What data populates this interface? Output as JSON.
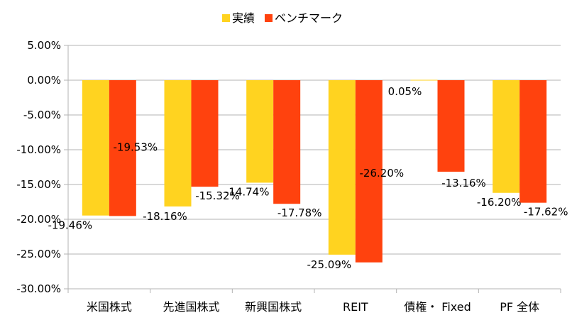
{
  "chart_data": {
    "type": "bar",
    "categories": [
      "米国株式",
      "先進国株式",
      "新興国株式",
      "REIT",
      "債権・ Fixed",
      "PF 全体"
    ],
    "series": [
      {
        "name": "実績",
        "color": "#FFD320",
        "values": [
          -19.46,
          -18.16,
          -14.74,
          -25.09,
          0.05,
          -16.2
        ],
        "labels": [
          "-19.46%",
          "-18.16%",
          "-14.74%",
          "-25.09%",
          "0.05%",
          "-16.20%"
        ]
      },
      {
        "name": "ベンチマーク",
        "color": "#FF420E",
        "values": [
          -19.53,
          -15.32,
          -17.78,
          -26.2,
          -13.16,
          -17.62
        ],
        "labels": [
          "-19.53%",
          "-15.32%",
          "-17.78%",
          "-26.20%",
          "-13.16%",
          "-17.62%"
        ]
      }
    ],
    "ylim": [
      -30,
      5
    ],
    "yticks": [
      5,
      0,
      -5,
      -10,
      -15,
      -20,
      -25,
      -30
    ],
    "ytick_labels": [
      "5.00%",
      "0.00%",
      "-5.00%",
      "-10.00%",
      "-15.00%",
      "-20.00%",
      "-25.00%",
      "-30.00%"
    ],
    "legend_position": "top-center",
    "grid": true,
    "grid_color": "#B3B3B3",
    "xlabel": "",
    "ylabel": "",
    "title": ""
  }
}
